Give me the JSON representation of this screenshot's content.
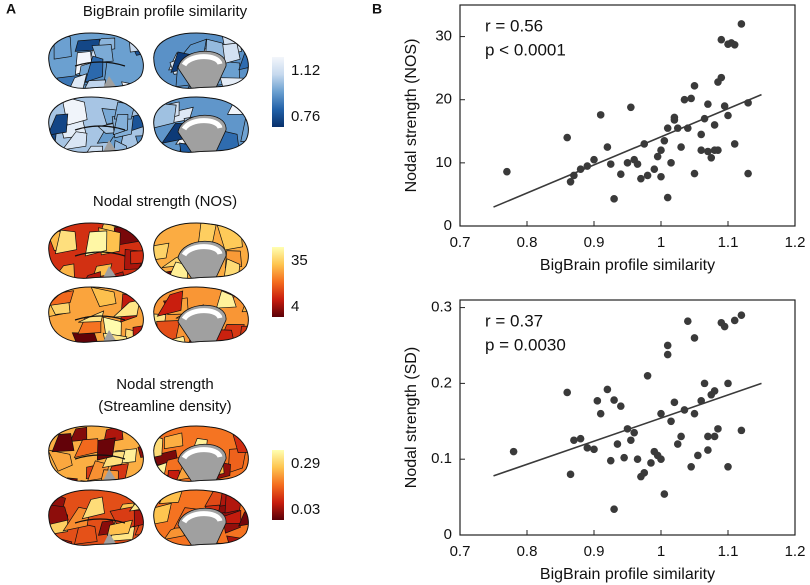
{
  "brain_maps": {
    "label": "A",
    "maps": [
      {
        "title": [
          "BigBrain profile similarity"
        ],
        "colorbar_ticks": [
          1.12,
          0.76
        ],
        "colors": [
          "#f3f6fb",
          "#c6d9ee",
          "#6a9fd0",
          "#2261a8",
          "#08306b"
        ]
      },
      {
        "title": [
          "Nodal strength (NOS)"
        ],
        "colorbar_ticks": [
          35,
          4
        ],
        "colors": [
          "#ffffb2",
          "#fec44f",
          "#f46d1e",
          "#c81d0e",
          "#5a0008"
        ]
      },
      {
        "title": [
          "Nodal strength",
          "(Streamline density)"
        ],
        "colorbar_ticks": [
          0.29,
          0.03
        ],
        "colors": [
          "#ffffb2",
          "#fec44f",
          "#f46d1e",
          "#c81d0e",
          "#5a0008"
        ]
      }
    ]
  },
  "panel_b_label": "B",
  "chart_data": [
    {
      "type": "scatter",
      "xlabel": "BigBrain profile similarity",
      "ylabel": "Nodal strength (NOS)",
      "annotations": [
        "r = 0.56",
        "p < 0.0001"
      ],
      "xlim": [
        0.7,
        1.2
      ],
      "xticks": [
        0.7,
        0.8,
        0.9,
        1,
        1.1,
        1.2
      ],
      "ylim": [
        0,
        35
      ],
      "yticks": [
        0,
        10,
        20,
        30
      ],
      "series": [
        {
          "color": "#3a3a3a",
          "x": [
            0.77,
            0.86,
            0.865,
            0.87,
            0.88,
            0.89,
            0.9,
            0.91,
            0.92,
            0.925,
            0.93,
            0.94,
            0.95,
            0.955,
            0.96,
            0.965,
            0.97,
            0.975,
            0.98,
            0.99,
            0.995,
            1.0,
            1.0,
            1.005,
            1.01,
            1.01,
            1.015,
            1.02,
            1.02,
            1.025,
            1.03,
            1.035,
            1.04,
            1.045,
            1.05,
            1.05,
            1.06,
            1.06,
            1.065,
            1.07,
            1.07,
            1.075,
            1.08,
            1.08,
            1.085,
            1.085,
            1.09,
            1.09,
            1.095,
            1.1,
            1.1,
            1.105,
            1.11,
            1.11,
            1.12,
            1.13,
            1.13
          ],
          "values": [
            8.6,
            14,
            7,
            8,
            9,
            9.5,
            10.5,
            17.6,
            12.5,
            9.8,
            4.3,
            8.2,
            10,
            18.8,
            10.5,
            9.8,
            7.5,
            13,
            8,
            9,
            11,
            7.8,
            12,
            13.5,
            15.5,
            4.5,
            10,
            17.2,
            16.8,
            15.5,
            12.5,
            20,
            15.5,
            20.2,
            22.2,
            8.3,
            14.5,
            12,
            17,
            11.8,
            19.3,
            10.8,
            12,
            16,
            12,
            22.8,
            23.5,
            29.5,
            19,
            28.8,
            17.5,
            29,
            13,
            28.7,
            32,
            19.5,
            8.3
          ]
        }
      ],
      "fit": {
        "color": "#3a3a3a",
        "x": [
          0.75,
          1.15
        ],
        "values": [
          3,
          20.8
        ]
      }
    },
    {
      "type": "scatter",
      "xlabel": "BigBrain profile similarity",
      "ylabel": "Nodal strength (SD)",
      "annotations": [
        "r = 0.37",
        "p = 0.0030"
      ],
      "xlim": [
        0.7,
        1.2
      ],
      "xticks": [
        0.7,
        0.8,
        0.9,
        1,
        1.1,
        1.2
      ],
      "ylim": [
        0,
        0.31
      ],
      "yticks": [
        0,
        0.1,
        0.2,
        0.3
      ],
      "series": [
        {
          "color": "#3a3a3a",
          "x": [
            0.78,
            0.86,
            0.865,
            0.87,
            0.88,
            0.89,
            0.9,
            0.905,
            0.91,
            0.92,
            0.925,
            0.93,
            0.93,
            0.935,
            0.94,
            0.945,
            0.95,
            0.955,
            0.96,
            0.965,
            0.97,
            0.975,
            0.98,
            0.985,
            0.99,
            0.995,
            1.0,
            1.0,
            1.005,
            1.01,
            1.01,
            1.015,
            1.02,
            1.025,
            1.03,
            1.035,
            1.04,
            1.045,
            1.05,
            1.05,
            1.055,
            1.06,
            1.065,
            1.07,
            1.07,
            1.075,
            1.08,
            1.08,
            1.085,
            1.09,
            1.095,
            1.1,
            1.1,
            1.11,
            1.12,
            1.12
          ],
          "values": [
            0.11,
            0.188,
            0.08,
            0.125,
            0.127,
            0.115,
            0.113,
            0.177,
            0.16,
            0.192,
            0.098,
            0.178,
            0.034,
            0.12,
            0.17,
            0.102,
            0.14,
            0.125,
            0.135,
            0.1,
            0.077,
            0.082,
            0.21,
            0.095,
            0.11,
            0.105,
            0.1,
            0.16,
            0.054,
            0.25,
            0.238,
            0.15,
            0.175,
            0.12,
            0.13,
            0.165,
            0.282,
            0.09,
            0.16,
            0.26,
            0.105,
            0.177,
            0.2,
            0.13,
            0.112,
            0.185,
            0.19,
            0.13,
            0.14,
            0.28,
            0.275,
            0.2,
            0.09,
            0.283,
            0.29,
            0.138
          ],
          "fill": null
        }
      ],
      "fit": {
        "color": "#3a3a3a",
        "x": [
          0.75,
          1.15
        ],
        "values": [
          0.078,
          0.2
        ]
      }
    }
  ]
}
